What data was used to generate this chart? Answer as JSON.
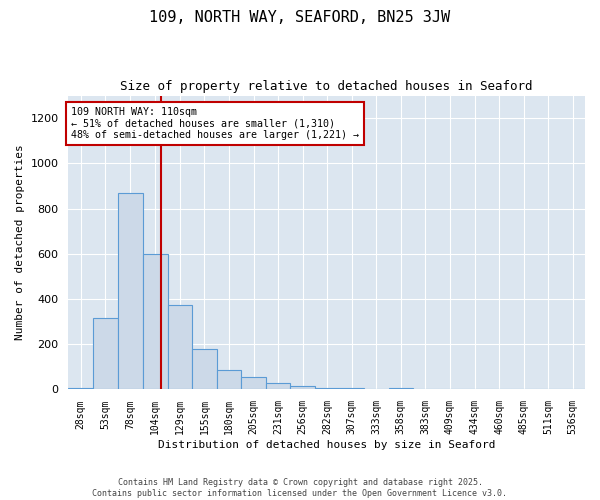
{
  "title": "109, NORTH WAY, SEAFORD, BN25 3JW",
  "subtitle": "Size of property relative to detached houses in Seaford",
  "xlabel": "Distribution of detached houses by size in Seaford",
  "ylabel": "Number of detached properties",
  "bar_color": "#ccd9e8",
  "bar_edge_color": "#5b9bd5",
  "background_color": "#dce6f0",
  "property_line_color": "#c00000",
  "property_value": 110,
  "annotation_text": "109 NORTH WAY: 110sqm\n← 51% of detached houses are smaller (1,310)\n48% of semi-detached houses are larger (1,221) →",
  "categories": [
    "28sqm",
    "53sqm",
    "78sqm",
    "104sqm",
    "129sqm",
    "155sqm",
    "180sqm",
    "205sqm",
    "231sqm",
    "256sqm",
    "282sqm",
    "307sqm",
    "333sqm",
    "358sqm",
    "383sqm",
    "409sqm",
    "434sqm",
    "460sqm",
    "485sqm",
    "511sqm",
    "536sqm"
  ],
  "bin_edges": [
    15.5,
    40.5,
    65.5,
    91.5,
    116.5,
    141.5,
    166.5,
    191.5,
    216.5,
    241.5,
    266.5,
    291.5,
    316.5,
    341.5,
    366.5,
    391.5,
    416.5,
    441.5,
    466.5,
    491.5,
    516.5,
    541.5
  ],
  "values": [
    5,
    315,
    870,
    600,
    375,
    180,
    85,
    55,
    30,
    15,
    8,
    5,
    3,
    8,
    3,
    0,
    2,
    0,
    0,
    0,
    1
  ],
  "ylim": [
    0,
    1300
  ],
  "yticks": [
    0,
    200,
    400,
    600,
    800,
    1000,
    1200
  ],
  "footer_line1": "Contains HM Land Registry data © Crown copyright and database right 2025.",
  "footer_line2": "Contains public sector information licensed under the Open Government Licence v3.0."
}
